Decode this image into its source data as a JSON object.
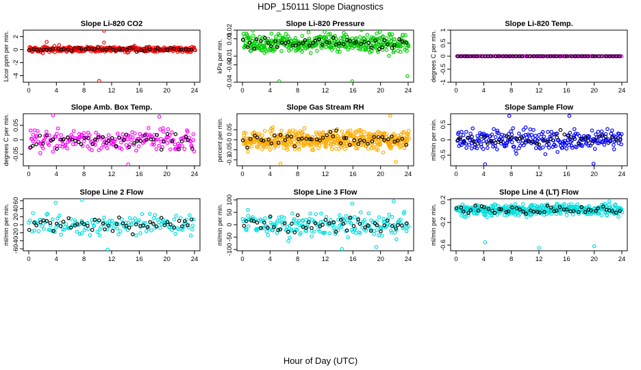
{
  "figure": {
    "title": "HDP_150111  Slope Diagnostics",
    "xlabel": "Hour of Day (UTC)"
  },
  "chart_data": [
    {
      "type": "scatter",
      "title": "Slope Li-820 CO2",
      "ylabel": "Licor ppm per min.",
      "color": "#ff0000",
      "xlim": [
        0,
        24
      ],
      "ylim": [
        -5,
        3
      ],
      "yticks": [
        -4,
        -2,
        0,
        2
      ],
      "xticks": [
        0,
        4,
        8,
        12,
        16,
        20,
        24
      ],
      "spread": 0.35,
      "center": 0.05,
      "density": 4,
      "outliers": [
        [
          2.6,
          1.2
        ],
        [
          10.9,
          2.9
        ],
        [
          10.9,
          1.1
        ],
        [
          10.2,
          -4.8
        ],
        [
          4.4,
          0.7
        ],
        [
          15.3,
          0.6
        ]
      ]
    },
    {
      "type": "scatter",
      "title": "Slope Li-820 Pressure",
      "ylabel": "kPa per min.",
      "color": "#00cc00",
      "xlim": [
        0,
        24
      ],
      "ylim": [
        -0.04,
        0.02
      ],
      "yticks": [
        -0.04,
        -0.02,
        -0.01,
        0.01,
        0.02
      ],
      "xticks": [
        0,
        4,
        8,
        12,
        16,
        20,
        24
      ],
      "spread": 0.009,
      "center": 0.005,
      "density": 4,
      "outliers": [
        [
          5.3,
          -0.039
        ],
        [
          15.9,
          -0.039
        ],
        [
          23.9,
          -0.033
        ],
        [
          11.9,
          0.018
        ],
        [
          4.2,
          0.016
        ],
        [
          19.9,
          0.018
        ]
      ]
    },
    {
      "type": "scatter",
      "title": "Slope Li-820 Temp.",
      "ylabel": "degrees C per min.",
      "color": "#cc00cc",
      "xlim": [
        0,
        24
      ],
      "ylim": [
        -1,
        1
      ],
      "yticks": [
        -1.0,
        -0.5,
        0.0,
        0.5,
        1.0
      ],
      "xticks": [
        0,
        4,
        8,
        12,
        16,
        20,
        24
      ],
      "spread": 0.0,
      "center": 0.0,
      "density": 1.5,
      "outliers": []
    },
    {
      "type": "scatter",
      "title": "Slope Amb. Box Temp.",
      "ylabel": "degrees C per min.",
      "color": "#ff00ff",
      "xlim": [
        0,
        24
      ],
      "ylim": [
        -0.09,
        0.09
      ],
      "yticks": [
        -0.05,
        0.0,
        0.05
      ],
      "xticks": [
        0,
        4,
        8,
        12,
        16,
        20,
        24
      ],
      "spread": 0.035,
      "center": 0.0,
      "density": 2,
      "outliers": [
        [
          3.5,
          0.085
        ],
        [
          14.4,
          -0.085
        ],
        [
          18.9,
          0.08
        ]
      ]
    },
    {
      "type": "scatter",
      "title": "Slope Gas Stream RH",
      "ylabel": "percent per min.",
      "color": "#ffaa00",
      "xlim": [
        0,
        24
      ],
      "ylim": [
        -0.13,
        0.13
      ],
      "yticks": [
        -0.1,
        -0.05,
        0.0,
        0.05
      ],
      "xticks": [
        0,
        4,
        8,
        12,
        16,
        20,
        24
      ],
      "spread": 0.045,
      "center": 0.0,
      "density": 5,
      "outliers": [
        [
          5.5,
          -0.12
        ],
        [
          21.4,
          0.12
        ],
        [
          22.2,
          -0.11
        ]
      ]
    },
    {
      "type": "scatter",
      "title": "Slope Sample Flow",
      "ylabel": "ml/min per min.",
      "color": "#0000ff",
      "xlim": [
        0,
        24
      ],
      "ylim": [
        -0.85,
        0.85
      ],
      "yticks": [
        -0.5,
        0.0,
        0.5
      ],
      "xticks": [
        0,
        4,
        8,
        12,
        16,
        20,
        24
      ],
      "spread": 0.3,
      "center": 0.0,
      "density": 2.5,
      "outliers": [
        [
          4.2,
          -0.8
        ],
        [
          16.4,
          0.78
        ],
        [
          7.7,
          0.78
        ],
        [
          19.9,
          -0.78
        ]
      ]
    },
    {
      "type": "scatter",
      "title": "Slope Line 2 Flow",
      "ylabel": "ml/min per min.",
      "color": "#00dddd",
      "xlim": [
        0,
        24
      ],
      "ylim": [
        -65,
        65
      ],
      "yticks": [
        -60,
        -40,
        -20,
        0,
        20,
        40,
        60
      ],
      "xticks": [
        0,
        4,
        8,
        12,
        16,
        20,
        24
      ],
      "spread": 22,
      "center": 0,
      "density": 1.5,
      "outliers": [
        [
          7.7,
          62
        ],
        [
          11.4,
          -62
        ],
        [
          3.9,
          55
        ]
      ]
    },
    {
      "type": "scatter",
      "title": "Slope Line 3 Flow",
      "ylabel": "ml/min per min.",
      "color": "#00dddd",
      "xlim": [
        0,
        24
      ],
      "ylim": [
        -105,
        105
      ],
      "yticks": [
        -100,
        -50,
        0,
        50,
        100
      ],
      "xticks": [
        0,
        4,
        8,
        12,
        16,
        20,
        24
      ],
      "spread": 40,
      "center": 0,
      "density": 2,
      "outliers": [
        [
          14.4,
          -98
        ],
        [
          21.9,
          95
        ],
        [
          15.9,
          85
        ],
        [
          19.4,
          -90
        ]
      ]
    },
    {
      "type": "scatter",
      "title": "Slope Line 4 (LT) Flow",
      "ylabel": "ml/min per min.",
      "color": "#00dddd",
      "xlim": [
        0,
        24
      ],
      "ylim": [
        -0.7,
        0.22
      ],
      "yticks": [
        -0.6,
        -0.2,
        0.2
      ],
      "xticks": [
        0,
        4,
        8,
        12,
        16,
        20,
        24
      ],
      "spread": 0.09,
      "center": 0.02,
      "density": 4,
      "outliers": [
        [
          4.2,
          -0.55
        ],
        [
          12.0,
          -0.65
        ],
        [
          20.0,
          -0.62
        ]
      ]
    }
  ]
}
